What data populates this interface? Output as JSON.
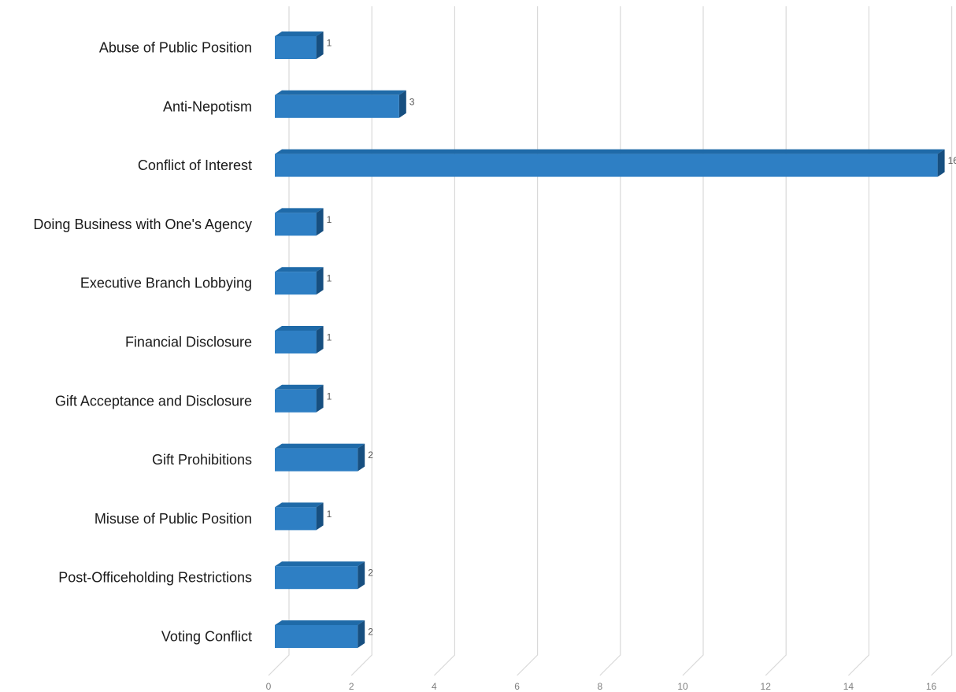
{
  "chart_data": {
    "type": "bar",
    "orientation": "horizontal",
    "style": "3d",
    "title": "",
    "xlabel": "",
    "ylabel": "",
    "categories": [
      "Abuse of Public Position",
      "Anti-Nepotism",
      "Conflict of Interest",
      "Doing Business with One's Agency",
      "Executive Branch Lobbying",
      "Financial Disclosure",
      "Gift Acceptance and Disclosure",
      "Gift Prohibitions",
      "Misuse of Public Position",
      "Post-Officeholding Restrictions",
      "Voting Conflict"
    ],
    "values": [
      1,
      3,
      16,
      1,
      1,
      1,
      1,
      2,
      1,
      2,
      2
    ],
    "xlim": [
      0,
      16
    ],
    "xticks": [
      0,
      2,
      4,
      6,
      8,
      10,
      12,
      14,
      16
    ],
    "grid": true,
    "legend": "none",
    "colors": {
      "bar_front": "#2e7fc4",
      "bar_top": "#1f6aa8",
      "bar_side": "#174f80",
      "grid": "#d9d9d9"
    }
  }
}
